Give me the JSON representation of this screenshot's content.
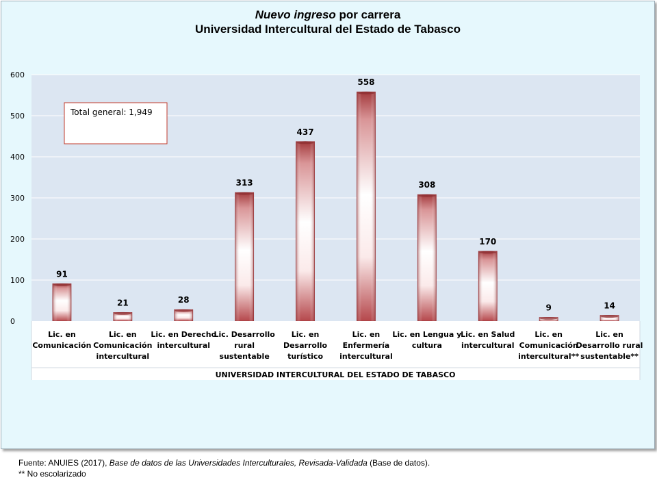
{
  "title": {
    "italic": "Nuevo ingreso",
    "rest": " por carrera",
    "line2": "Universidad Intercultural del Estado de Tabasco"
  },
  "annotation": "Total general: 1,949",
  "chart_data": {
    "type": "bar",
    "group_label": "UNIVERSIDAD INTERCULTURAL DEL ESTADO DE TABASCO",
    "categories": [
      [
        "Lic. en",
        "Comunicación"
      ],
      [
        "Lic. en",
        "Comunicación",
        "intercultural"
      ],
      [
        "Lic. en Derecho",
        "intercultural"
      ],
      [
        "Lic. Desarrollo",
        "rural",
        "sustentable"
      ],
      [
        "Lic. en",
        "Desarrollo",
        "turístico"
      ],
      [
        "Lic. en",
        "Enfermería",
        "intercultural"
      ],
      [
        "Lic. en Lengua y",
        "cultura"
      ],
      [
        "Lic. en Salud",
        "intercultural"
      ],
      [
        "Lic. en",
        "Comunicación",
        "intercultural**"
      ],
      [
        "Lic. en",
        "Desarrollo rural",
        "sustentable**"
      ]
    ],
    "values": [
      91,
      21,
      28,
      313,
      437,
      558,
      308,
      170,
      9,
      14
    ],
    "ylim": [
      0,
      600
    ],
    "yticks": [
      0,
      100,
      200,
      300,
      400,
      500,
      600
    ],
    "grid": true,
    "colors": {
      "plot_bg": "#dce6f2",
      "bar_dark": "#a33a3d",
      "bar_light": "#ffffff",
      "grid": "#ffffff"
    }
  },
  "source": {
    "prefix": "Fuente: ANUIES (2017), ",
    "italic": "Base de datos de las Universidades  Interculturales, Revisada-Validada",
    "suffix": "  (Base de datos).",
    "note": "** No escolarizado"
  }
}
